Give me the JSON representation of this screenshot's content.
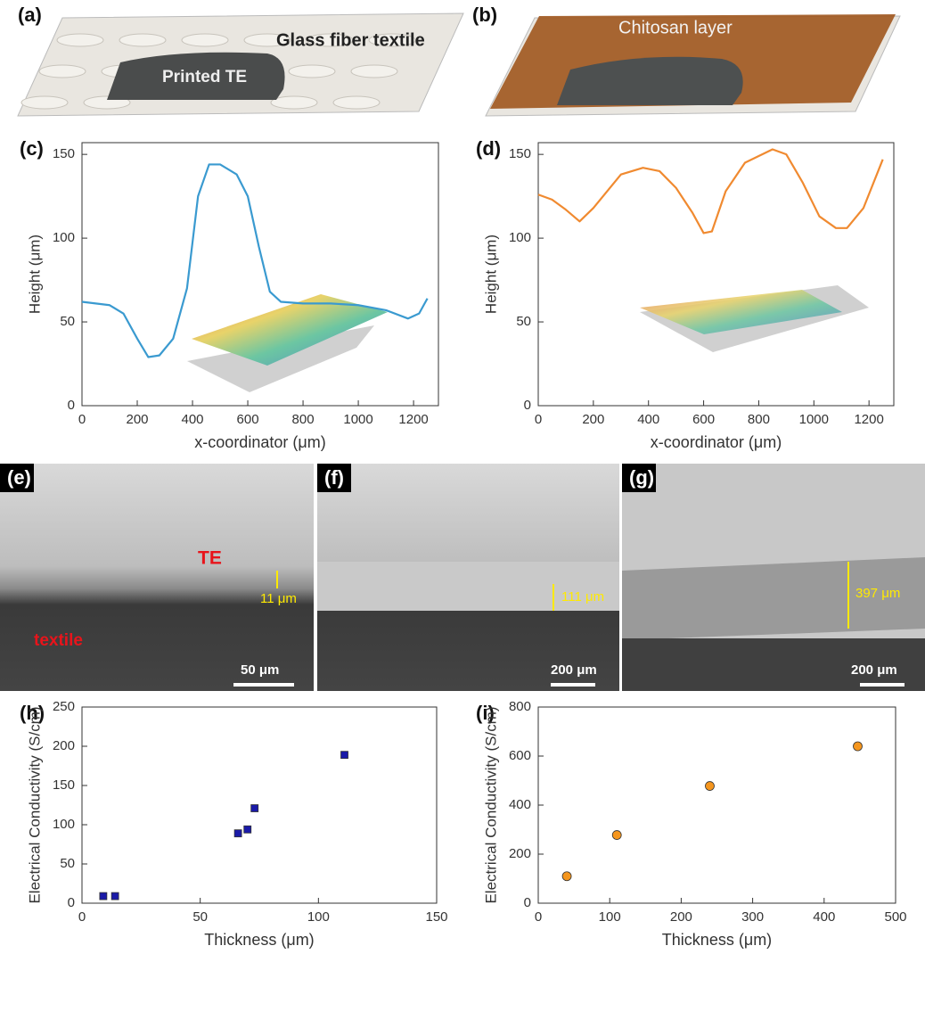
{
  "illustrations": [
    {
      "label": "(a)",
      "texts": [
        "Glass fiber textile",
        "Printed TE"
      ]
    },
    {
      "label": "(b)",
      "texts": [
        "Chitosan layer"
      ]
    }
  ],
  "micrographs": [
    {
      "label": "(e)",
      "texts": [
        "TE",
        "11 μm",
        "textile"
      ],
      "scale_bar": "50 μm"
    },
    {
      "label": "(f)",
      "texts": [
        "111 μm"
      ],
      "scale_bar": "200 μm"
    },
    {
      "label": "(g)",
      "texts": [
        "397 μm"
      ],
      "scale_bar": "200 μm"
    }
  ],
  "chart_data": [
    {
      "type": "line",
      "label": "(c)",
      "x_label": "x-coordinator (μm)",
      "y_label": "Height (μm)",
      "color": "#3a9ad0",
      "x": [
        0,
        100,
        150,
        200,
        240,
        280,
        330,
        380,
        420,
        460,
        500,
        560,
        600,
        640,
        680,
        720,
        800,
        900,
        1000,
        1100,
        1180,
        1220,
        1250
      ],
      "values": [
        62,
        60,
        55,
        40,
        29,
        30,
        40,
        70,
        125,
        144,
        144,
        138,
        125,
        95,
        68,
        62,
        61,
        61,
        60,
        57,
        52,
        55,
        64
      ],
      "xlim": [
        0,
        1290
      ],
      "ylim": [
        0,
        157
      ],
      "xticks": [
        0,
        200,
        400,
        600,
        800,
        1000,
        1200
      ],
      "yticks": [
        0,
        50,
        100,
        150
      ]
    },
    {
      "type": "line",
      "label": "(d)",
      "x_label": "x-coordinator (μm)",
      "y_label": "Height (μm)",
      "color": "#f08a30",
      "x": [
        0,
        50,
        100,
        150,
        200,
        300,
        380,
        440,
        500,
        560,
        600,
        630,
        680,
        750,
        850,
        900,
        960,
        1020,
        1080,
        1120,
        1180,
        1250
      ],
      "values": [
        126,
        123,
        117,
        110,
        118,
        138,
        142,
        140,
        130,
        115,
        103,
        104,
        128,
        145,
        153,
        150,
        133,
        113,
        106,
        106,
        118,
        147
      ],
      "xlim": [
        0,
        1290
      ],
      "ylim": [
        0,
        157
      ],
      "xticks": [
        0,
        200,
        400,
        600,
        800,
        1000,
        1200
      ],
      "yticks": [
        0,
        50,
        100,
        150
      ]
    },
    {
      "type": "scatter",
      "label": "(h)",
      "marker": "square",
      "color": "#1a1aa8",
      "x_label": "Thickness (μm)",
      "y_label": "Electrical Conductivity (S/cm)",
      "x": [
        9,
        14,
        66,
        70,
        73,
        111
      ],
      "values": [
        9,
        9,
        89,
        94,
        121,
        189
      ],
      "xlim": [
        0,
        150
      ],
      "ylim": [
        0,
        250
      ],
      "xticks": [
        0,
        50,
        100,
        150
      ],
      "yticks": [
        0,
        50,
        100,
        150,
        200,
        250
      ]
    },
    {
      "type": "scatter",
      "label": "(i)",
      "marker": "circle",
      "color": "#f5961e",
      "x_label": "Thickness (μm)",
      "y_label": "Electrical Conductivity (S/cm)",
      "x": [
        40,
        110,
        240,
        447
      ],
      "values": [
        110,
        278,
        478,
        640
      ],
      "xlim": [
        0,
        500
      ],
      "ylim": [
        0,
        800
      ],
      "xticks": [
        0,
        100,
        200,
        300,
        400,
        500
      ],
      "yticks": [
        0,
        200,
        400,
        600,
        800
      ]
    }
  ]
}
